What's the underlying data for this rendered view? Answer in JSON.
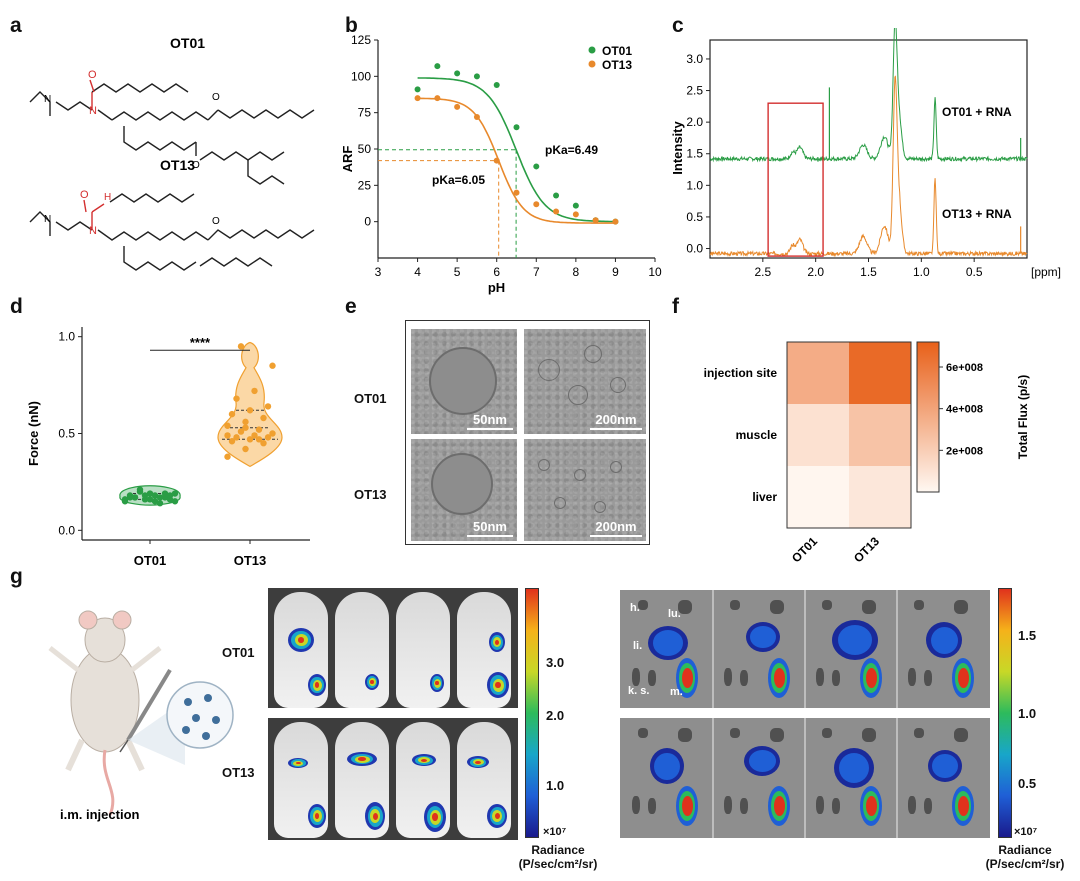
{
  "panels": {
    "a": "a",
    "b": "b",
    "c": "c",
    "d": "d",
    "e": "e",
    "f": "f",
    "g": "g"
  },
  "panel_a": {
    "compound1": "OT01",
    "compound2": "OT13",
    "amide_o": "O",
    "n_atom": "N",
    "o_atom": "O",
    "nh": "H"
  },
  "chart_data": [
    {
      "panel": "b",
      "type": "scatter",
      "xlabel": "pH",
      "ylabel": "ARF",
      "xlim": [
        3,
        10
      ],
      "ylim": [
        -25,
        125
      ],
      "xticks": [
        3,
        4,
        5,
        6,
        7,
        8,
        9,
        10
      ],
      "yticks": [
        0,
        25,
        50,
        75,
        100,
        125
      ],
      "legend": "top-right",
      "series": [
        {
          "name": "OT01",
          "color": "#2a9d45",
          "points": [
            [
              4.0,
              91
            ],
            [
              4.5,
              107
            ],
            [
              5.0,
              102
            ],
            [
              5.5,
              100
            ],
            [
              6.0,
              94
            ],
            [
              6.5,
              65
            ],
            [
              7.0,
              38
            ],
            [
              7.5,
              18
            ],
            [
              8.0,
              11
            ],
            [
              8.5,
              1
            ],
            [
              9.0,
              0
            ]
          ],
          "fit": {
            "top": 99,
            "bottom": 0,
            "pka": 6.49,
            "slope": 1.2
          }
        },
        {
          "name": "OT13",
          "color": "#e8892c",
          "points": [
            [
              4.0,
              85
            ],
            [
              4.5,
              85
            ],
            [
              5.0,
              79
            ],
            [
              5.5,
              72
            ],
            [
              6.0,
              42
            ],
            [
              6.5,
              20
            ],
            [
              7.0,
              12
            ],
            [
              7.5,
              7
            ],
            [
              8.0,
              5
            ],
            [
              8.5,
              1
            ],
            [
              9.0,
              0
            ]
          ],
          "fit": {
            "top": 85,
            "bottom": -1,
            "pka": 6.05,
            "slope": 1.4
          }
        }
      ],
      "annotations": [
        "pKa=6.49",
        "pKa=6.05"
      ]
    },
    {
      "panel": "c",
      "type": "line",
      "xlabel": "[ppm]",
      "ylabel": "Intensity",
      "xlim": [
        3.0,
        0.0
      ],
      "ylim": [
        -0.15,
        3.3
      ],
      "xticks": [
        2.5,
        2.0,
        1.5,
        1.0,
        0.5
      ],
      "yticks": [
        0.0,
        0.5,
        1.0,
        1.5,
        2.0,
        2.5,
        3.0
      ],
      "series": [
        {
          "name": "OT01 + RNA",
          "color": "#2a9d45",
          "baseline": 1.42
        },
        {
          "name": "OT13 + RNA",
          "color": "#e8892c",
          "baseline": -0.08
        }
      ]
    },
    {
      "panel": "d",
      "type": "scatter",
      "ylabel": "Force (nN)",
      "categories": [
        "OT01",
        "OT13"
      ],
      "ylim": [
        -0.05,
        1.05
      ],
      "yticks": [
        0.0,
        0.5,
        1.0
      ],
      "significance": "****",
      "series": [
        {
          "name": "OT01",
          "color": "#2a9d45",
          "values": [
            0.15,
            0.16,
            0.17,
            0.18,
            0.19,
            0.16,
            0.17,
            0.18,
            0.15,
            0.2,
            0.17,
            0.16,
            0.18,
            0.19,
            0.17,
            0.16,
            0.18,
            0.17,
            0.15,
            0.19,
            0.21,
            0.14
          ]
        },
        {
          "name": "OT13",
          "color": "#f0a030",
          "values": [
            0.38,
            0.42,
            0.45,
            0.46,
            0.47,
            0.48,
            0.48,
            0.49,
            0.5,
            0.51,
            0.52,
            0.54,
            0.56,
            0.58,
            0.6,
            0.62,
            0.64,
            0.68,
            0.72,
            0.85,
            0.95,
            0.47,
            0.49,
            0.53
          ]
        }
      ]
    },
    {
      "panel": "f",
      "type": "heatmap",
      "rows": [
        "injection site",
        "muscle",
        "liver"
      ],
      "columns": [
        "OT01",
        "OT13"
      ],
      "values": [
        [
          400000000.0,
          750000000.0
        ],
        [
          120000000.0,
          280000000.0
        ],
        [
          10000000.0,
          90000000.0
        ]
      ],
      "colorbar_label": "Total Flux (p/s)",
      "colorbar_ticks": [
        "2e+008",
        "4e+008",
        "6e+008"
      ]
    }
  ],
  "panel_e": {
    "row1": "OT01",
    "row2": "OT13",
    "scale_small": "50nm",
    "scale_large": "200nm"
  },
  "panel_g": {
    "injection_label": "i.m. injection",
    "row1": "OT01",
    "row2": "OT13",
    "colorbar1_ticks": [
      "3.0",
      "2.0",
      "1.0"
    ],
    "colorbar1_unit": "×10⁷",
    "colorbar2_ticks": [
      "1.5",
      "1.0",
      "0.5"
    ],
    "colorbar2_unit": "×10⁷",
    "radiance_label": "Radiance",
    "radiance_unit": "(P/sec/cm²/sr)",
    "organs": {
      "h": "h.",
      "lu": "lu.",
      "li": "li.",
      "ks": "k. s.",
      "m": "m."
    }
  }
}
